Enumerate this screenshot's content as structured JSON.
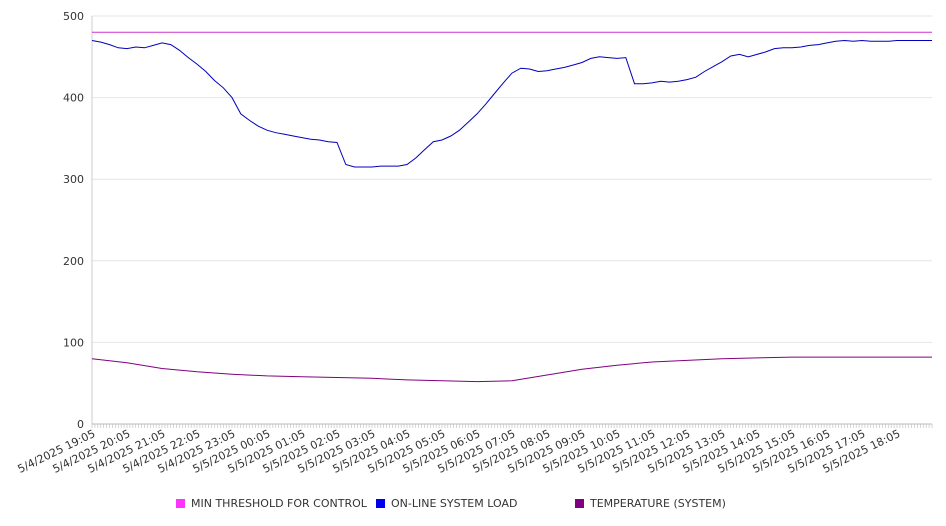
{
  "chart_data": {
    "type": "line",
    "title": "",
    "xlabel": "",
    "ylabel": "",
    "ylim": [
      0,
      500
    ],
    "yticks": [
      0,
      100,
      200,
      300,
      400,
      500
    ],
    "grid": "horizontal",
    "legend_position": "bottom",
    "x_tick_labels": [
      "5/4/2025 19:05",
      "5/4/2025 20:05",
      "5/4/2025 21:05",
      "5/4/2025 22:05",
      "5/4/2025 23:05",
      "5/5/2025 00:05",
      "5/5/2025 01:05",
      "5/5/2025 02:05",
      "5/5/2025 03:05",
      "5/5/2025 04:05",
      "5/5/2025 05:05",
      "5/5/2025 06:05",
      "5/5/2025 07:05",
      "5/5/2025 08:05",
      "5/5/2025 09:05",
      "5/5/2025 10:05",
      "5/5/2025 11:05",
      "5/5/2025 12:05",
      "5/5/2025 13:05",
      "5/5/2025 14:05",
      "5/5/2025 15:05",
      "5/5/2025 16:05",
      "5/5/2025 17:05",
      "5/5/2025 18:05"
    ],
    "series": [
      {
        "name": "MIN THRESHOLD FOR CONTROL",
        "color": "#cc33cc",
        "x": [
          "5/4/2025 19:05",
          "5/5/2025 18:05"
        ],
        "values": [
          480,
          480
        ]
      },
      {
        "name": "ON-LINE SYSTEM LOAD",
        "color": "#0000bb",
        "x": [
          "5/4/2025 19:05",
          "5/4/2025 19:20",
          "5/4/2025 19:35",
          "5/4/2025 19:50",
          "5/4/2025 20:05",
          "5/4/2025 20:20",
          "5/4/2025 20:35",
          "5/4/2025 20:50",
          "5/4/2025 21:05",
          "5/4/2025 21:20",
          "5/4/2025 21:35",
          "5/4/2025 21:50",
          "5/4/2025 22:05",
          "5/4/2025 22:20",
          "5/4/2025 22:35",
          "5/4/2025 22:50",
          "5/4/2025 23:05",
          "5/4/2025 23:20",
          "5/4/2025 23:35",
          "5/4/2025 23:50",
          "5/5/2025 00:05",
          "5/5/2025 00:20",
          "5/5/2025 00:35",
          "5/5/2025 00:50",
          "5/5/2025 01:05",
          "5/5/2025 01:20",
          "5/5/2025 01:35",
          "5/5/2025 01:50",
          "5/5/2025 02:05",
          "5/5/2025 02:20",
          "5/5/2025 02:35",
          "5/5/2025 02:50",
          "5/5/2025 03:05",
          "5/5/2025 03:20",
          "5/5/2025 03:35",
          "5/5/2025 03:50",
          "5/5/2025 04:05",
          "5/5/2025 04:20",
          "5/5/2025 04:35",
          "5/5/2025 04:50",
          "5/5/2025 05:05",
          "5/5/2025 05:20",
          "5/5/2025 05:35",
          "5/5/2025 05:50",
          "5/5/2025 06:05",
          "5/5/2025 06:20",
          "5/5/2025 06:35",
          "5/5/2025 06:50",
          "5/5/2025 07:05",
          "5/5/2025 07:20",
          "5/5/2025 07:35",
          "5/5/2025 07:50",
          "5/5/2025 08:05",
          "5/5/2025 08:20",
          "5/5/2025 08:35",
          "5/5/2025 08:50",
          "5/5/2025 09:05",
          "5/5/2025 09:20",
          "5/5/2025 09:35",
          "5/5/2025 09:50",
          "5/5/2025 10:05",
          "5/5/2025 10:20",
          "5/5/2025 10:35",
          "5/5/2025 10:50",
          "5/5/2025 11:05",
          "5/5/2025 11:20",
          "5/5/2025 11:35",
          "5/5/2025 11:50",
          "5/5/2025 12:05",
          "5/5/2025 12:20",
          "5/5/2025 12:35",
          "5/5/2025 12:50",
          "5/5/2025 13:05",
          "5/5/2025 13:20",
          "5/5/2025 13:35",
          "5/5/2025 13:50",
          "5/5/2025 14:05",
          "5/5/2025 14:20",
          "5/5/2025 14:35",
          "5/5/2025 14:50",
          "5/5/2025 15:05",
          "5/5/2025 15:20",
          "5/5/2025 15:35",
          "5/5/2025 15:50",
          "5/5/2025 16:05",
          "5/5/2025 16:20",
          "5/5/2025 16:35",
          "5/5/2025 16:50",
          "5/5/2025 17:05",
          "5/5/2025 17:20",
          "5/5/2025 17:35",
          "5/5/2025 17:50",
          "5/5/2025 18:05"
        ],
        "values": [
          470,
          468,
          465,
          461,
          460,
          462,
          461,
          464,
          467,
          465,
          458,
          449,
          441,
          432,
          421,
          412,
          400,
          380,
          372,
          365,
          360,
          357,
          355,
          353,
          351,
          349,
          348,
          346,
          345,
          318,
          315,
          315,
          315,
          316,
          316,
          316,
          318,
          326,
          336,
          346,
          348,
          353,
          360,
          370,
          380,
          392,
          405,
          418,
          430,
          436,
          435,
          432,
          433,
          435,
          437,
          440,
          443,
          448,
          450,
          449,
          448,
          449,
          417,
          417,
          418,
          420,
          419,
          420,
          422,
          425,
          432,
          438,
          444,
          451,
          453,
          450,
          453,
          456,
          460,
          461,
          461,
          462,
          464,
          465,
          467,
          469,
          470,
          469,
          470,
          469,
          469,
          469,
          470
        ]
      },
      {
        "name": "TEMPERATURE (SYSTEM)",
        "color": "#800080",
        "x": [
          "5/4/2025 19:05",
          "5/4/2025 20:05",
          "5/4/2025 21:05",
          "5/4/2025 22:05",
          "5/4/2025 23:05",
          "5/5/2025 00:05",
          "5/5/2025 01:05",
          "5/5/2025 02:05",
          "5/5/2025 03:05",
          "5/5/2025 04:05",
          "5/5/2025 05:05",
          "5/5/2025 06:05",
          "5/5/2025 07:05",
          "5/5/2025 08:05",
          "5/5/2025 09:05",
          "5/5/2025 10:05",
          "5/5/2025 11:05",
          "5/5/2025 12:05",
          "5/5/2025 13:05",
          "5/5/2025 14:05",
          "5/5/2025 15:05",
          "5/5/2025 16:05",
          "5/5/2025 17:05",
          "5/5/2025 18:05"
        ],
        "values": [
          80,
          75,
          68,
          64,
          61,
          59,
          58,
          57,
          56,
          54,
          53,
          52,
          53,
          60,
          67,
          72,
          76,
          78,
          80,
          81,
          82,
          82,
          82,
          82
        ]
      }
    ]
  }
}
